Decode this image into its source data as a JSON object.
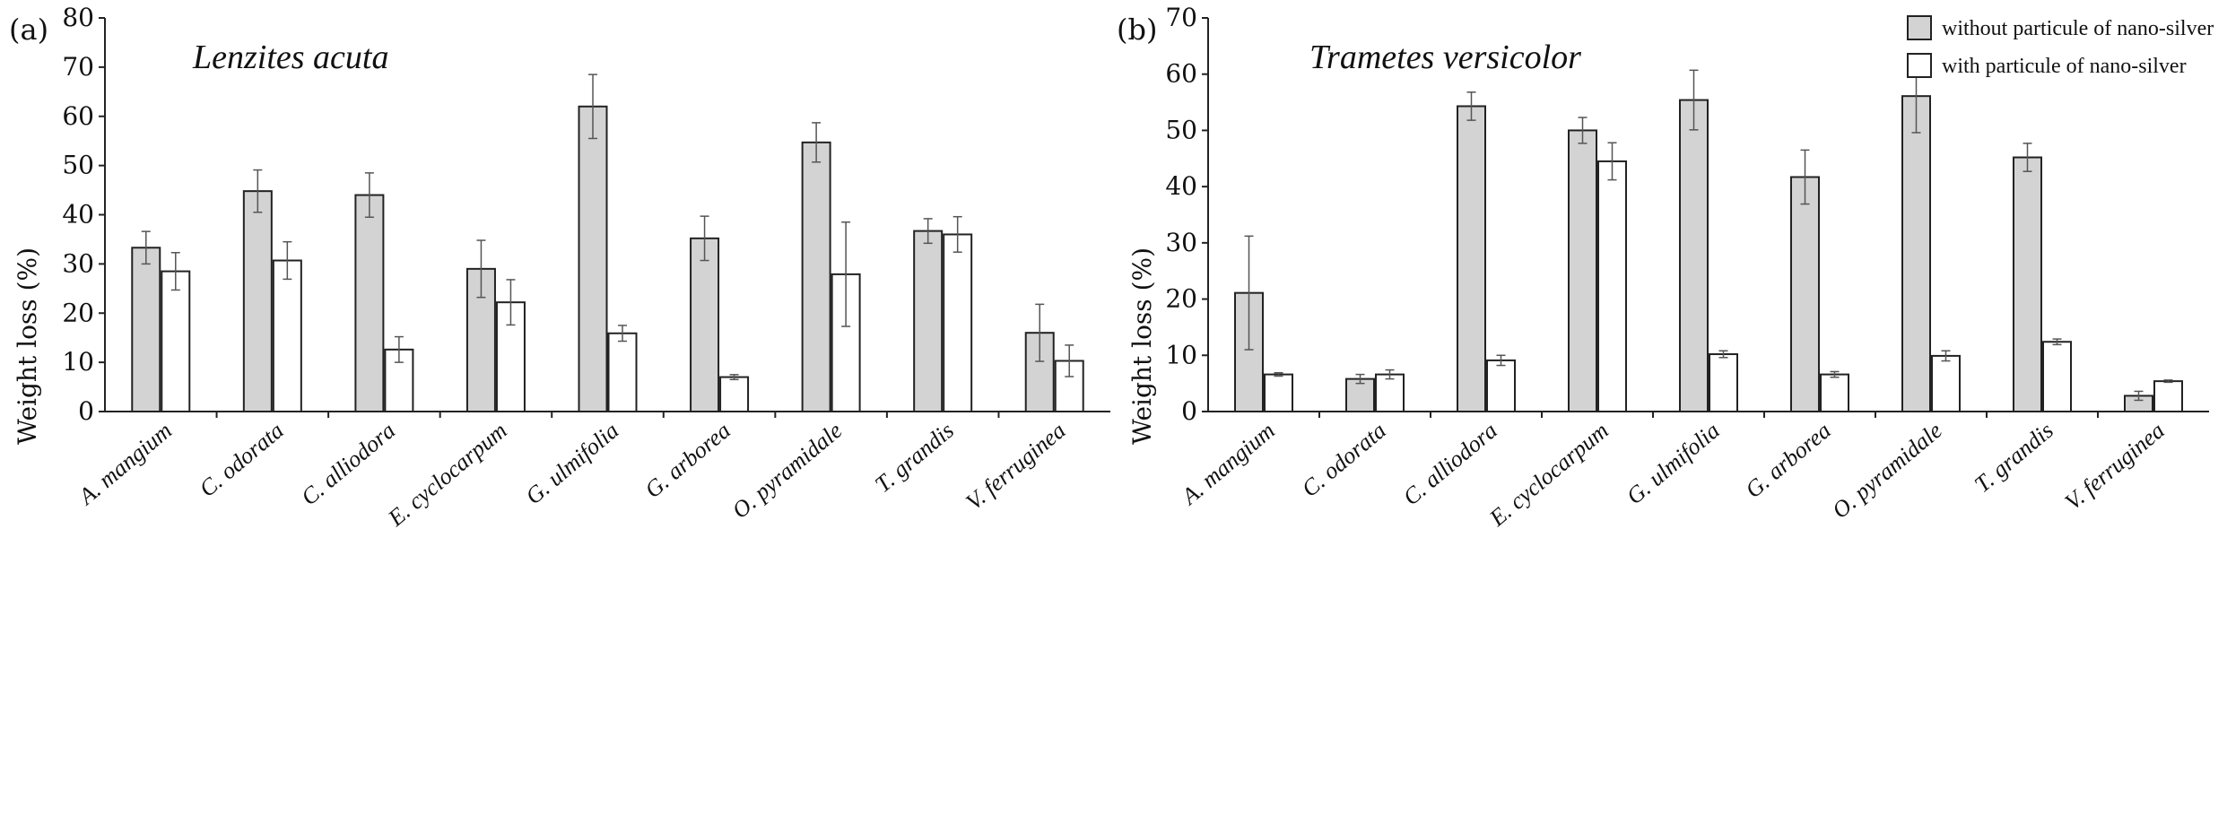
{
  "colors": {
    "without": "#d3d3d3",
    "with": "#ffffff",
    "stroke": "#222222",
    "axis": "#222222"
  },
  "legend": {
    "without": "without particule of nano-silver",
    "with": "with particule of nano-silver"
  },
  "chart_data": [
    {
      "type": "bar",
      "panel_label": "(a)",
      "title": "Lenzites acuta",
      "xlabel": "",
      "ylabel": "Weight loss (%)",
      "ylim": [
        0,
        80
      ],
      "yticks": [
        0,
        10,
        20,
        30,
        40,
        50,
        60,
        70,
        80
      ],
      "categories": [
        "A. mangium",
        "C. odorata",
        "C. alliodora",
        "E. cyclocarpum",
        "G. ulmifolia",
        "G. arborea",
        "O. pyramidale",
        "T. grandis",
        "V. ferruginea"
      ],
      "series": [
        {
          "name": "without particule of nano-silver",
          "values": [
            33.3,
            44.8,
            44.0,
            29.0,
            62.0,
            35.2,
            54.7,
            36.7,
            16.0
          ],
          "errors": [
            3.3,
            4.3,
            4.5,
            5.8,
            6.5,
            4.5,
            4.0,
            2.5,
            5.8
          ]
        },
        {
          "name": "with particule of nano-silver",
          "values": [
            28.5,
            30.7,
            12.6,
            22.2,
            15.9,
            7.0,
            27.9,
            36.0,
            10.3
          ],
          "errors": [
            3.8,
            3.8,
            2.6,
            4.6,
            1.6,
            0.5,
            10.6,
            3.6,
            3.2
          ]
        }
      ]
    },
    {
      "type": "bar",
      "panel_label": "(b)",
      "title": "Trametes versicolor",
      "xlabel": "",
      "ylabel": "Weight loss (%)",
      "ylim": [
        0,
        70
      ],
      "yticks": [
        0,
        10,
        20,
        30,
        40,
        50,
        60,
        70
      ],
      "categories": [
        "A. mangium",
        "C. odorata",
        "C. alliodora",
        "E. cyclocarpum",
        "G. ulmifolia",
        "G. arborea",
        "O. pyramidale",
        "T. grandis",
        "V. ferruginea"
      ],
      "series": [
        {
          "name": "without particule of nano-silver",
          "values": [
            21.1,
            5.8,
            54.3,
            50.0,
            55.4,
            41.7,
            56.1,
            45.2,
            2.8
          ],
          "errors": [
            10.1,
            0.8,
            2.5,
            2.3,
            5.3,
            4.8,
            6.5,
            2.5,
            0.8
          ]
        },
        {
          "name": "with particule of nano-silver",
          "values": [
            6.6,
            6.6,
            9.1,
            44.5,
            10.2,
            6.6,
            9.9,
            12.4,
            5.4
          ],
          "errors": [
            0.3,
            0.8,
            0.9,
            3.3,
            0.6,
            0.5,
            0.9,
            0.5,
            0.2
          ]
        }
      ]
    }
  ]
}
